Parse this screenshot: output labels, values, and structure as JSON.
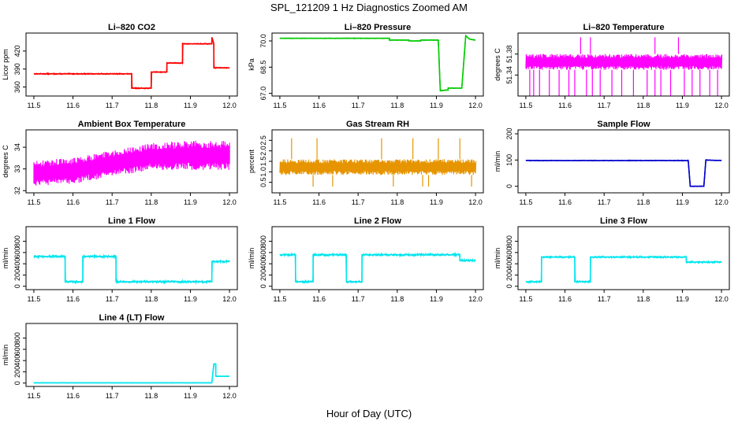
{
  "figure": {
    "title": "SPL_121209  1 Hz Diagnostics Zoomed AM",
    "xlabel": "Hour of Day (UTC)"
  },
  "chart_data": [
    {
      "type": "line",
      "title": "Li–820 CO2",
      "ylabel": "Licor ppm",
      "color": "#ff0000",
      "xlim": [
        11.48,
        12.02
      ],
      "ylim": [
        345,
        450
      ],
      "xticks": [
        11.5,
        11.6,
        11.7,
        11.8,
        11.9,
        12.0
      ],
      "yticks": [
        360,
        390,
        420
      ],
      "series": [
        {
          "x": [
            11.5,
            11.75,
            11.75,
            11.8,
            11.8,
            11.84,
            11.84,
            11.88,
            11.88,
            11.955,
            11.955,
            11.96,
            11.96,
            12.0
          ],
          "y": [
            382,
            382,
            358,
            358,
            385,
            385,
            400,
            400,
            432,
            432,
            443,
            432,
            392,
            392
          ],
          "noise": 0.8
        }
      ]
    },
    {
      "type": "line",
      "title": "Li–820 Pressure",
      "ylabel": "kPa",
      "color": "#00cc00",
      "xlim": [
        11.48,
        12.02
      ],
      "ylim": [
        66.85,
        70.45
      ],
      "xticks": [
        11.5,
        11.6,
        11.7,
        11.8,
        11.9,
        12.0
      ],
      "yticks": [
        67.0,
        68.5,
        70.0
      ],
      "series": [
        {
          "x": [
            11.5,
            11.78,
            11.78,
            11.83,
            11.83,
            11.86,
            11.86,
            11.905,
            11.91,
            11.93,
            11.93,
            11.965,
            11.975,
            11.985,
            12.0
          ],
          "y": [
            70.15,
            70.15,
            70.05,
            70.05,
            70.0,
            70.0,
            70.05,
            70.05,
            67.15,
            67.2,
            67.3,
            67.3,
            70.3,
            70.1,
            70.05
          ],
          "noise": 0.015
        }
      ]
    },
    {
      "type": "band",
      "title": "Li–820 Temperature",
      "ylabel": "degrees C",
      "color": "#ff00ff",
      "xlim": [
        11.48,
        12.02
      ],
      "ylim": [
        51.3,
        51.42
      ],
      "xticks": [
        11.5,
        11.6,
        11.7,
        11.8,
        11.9,
        12.0
      ],
      "yticks": [
        51.34,
        51.38
      ],
      "band": {
        "x": [
          11.5,
          12.0
        ],
        "low": [
          51.35,
          51.35
        ],
        "high": [
          51.38,
          51.38
        ]
      },
      "spikes_down": [
        11.51,
        11.52,
        11.535,
        11.56,
        11.585,
        11.61,
        11.625,
        11.655,
        11.67,
        11.69,
        11.72,
        11.745,
        11.775,
        11.81,
        11.83,
        11.845,
        11.87,
        11.905,
        11.925,
        11.945,
        11.97,
        11.99
      ],
      "spikes_up": [
        11.64,
        11.665,
        11.83,
        11.89
      ],
      "spike_low": 51.3,
      "spike_high": 51.412
    },
    {
      "type": "band",
      "title": "Ambient Box Temperature",
      "ylabel": "degrees C",
      "color": "#ff00ff",
      "xlim": [
        11.48,
        12.02
      ],
      "ylim": [
        31.9,
        34.8
      ],
      "xticks": [
        11.5,
        11.6,
        11.7,
        11.8,
        11.9,
        12.0
      ],
      "yticks": [
        32.0,
        33.0,
        34.0
      ],
      "band": {
        "x": [
          11.5,
          11.6,
          11.7,
          11.8,
          11.9,
          12.0
        ],
        "low": [
          32.2,
          32.3,
          32.65,
          32.95,
          32.95,
          32.95
        ],
        "high": [
          33.4,
          33.5,
          33.85,
          34.2,
          34.3,
          34.3
        ]
      }
    },
    {
      "type": "band",
      "title": "Gas Stream RH",
      "ylabel": "percent",
      "color": "#e69500",
      "xlim": [
        11.48,
        12.02
      ],
      "ylim": [
        0.0,
        3.0
      ],
      "xticks": [
        11.5,
        11.6,
        11.7,
        11.8,
        11.9,
        12.0
      ],
      "yticks": [
        0.5,
        1.0,
        1.5,
        2.0,
        2.5
      ],
      "band": {
        "x": [
          11.5,
          12.0
        ],
        "low": [
          0.85,
          0.85
        ],
        "high": [
          1.6,
          1.6
        ]
      },
      "spikes_up": [
        11.53,
        11.595,
        11.76,
        11.84,
        11.905,
        11.96
      ],
      "spikes_down": [
        11.585,
        11.635,
        11.79,
        11.865,
        11.88,
        11.99
      ],
      "spike_low": 0.3,
      "spike_high": 2.6
    },
    {
      "type": "line",
      "title": "Sample Flow",
      "ylabel": "ml/min",
      "color": "#0000cc",
      "xlim": [
        11.48,
        12.02
      ],
      "ylim": [
        -25,
        215
      ],
      "xticks": [
        11.5,
        11.6,
        11.7,
        11.8,
        11.9,
        12.0
      ],
      "yticks": [
        0,
        100,
        200
      ],
      "series": [
        {
          "x": [
            11.5,
            11.915,
            11.92,
            11.955,
            11.96,
            12.0
          ],
          "y": [
            98,
            98,
            0,
            0,
            100,
            98
          ],
          "noise": 1.2
        }
      ]
    },
    {
      "type": "line",
      "title": "Line 1 Flow",
      "ylabel": "ml/min",
      "color": "#00e5ee",
      "xlim": [
        11.48,
        12.02
      ],
      "ylim": [
        -60,
        1060
      ],
      "xticks": [
        11.5,
        11.6,
        11.7,
        11.8,
        11.9,
        12.0
      ],
      "yticks": [
        0,
        200,
        400,
        600,
        800
      ],
      "series": [
        {
          "x": [
            11.5,
            11.58,
            11.58,
            11.625,
            11.625,
            11.71,
            11.71,
            11.955,
            11.955,
            12.0
          ],
          "y": [
            530,
            530,
            80,
            80,
            530,
            530,
            80,
            80,
            440,
            440
          ],
          "noise": 18
        }
      ]
    },
    {
      "type": "line",
      "title": "Line 2 Flow",
      "ylabel": "ml/min",
      "color": "#00e5ee",
      "xlim": [
        11.48,
        12.02
      ],
      "ylim": [
        -60,
        1060
      ],
      "xticks": [
        11.5,
        11.6,
        11.7,
        11.8,
        11.9,
        12.0
      ],
      "yticks": [
        0,
        200,
        400,
        600,
        800
      ],
      "series": [
        {
          "x": [
            11.5,
            11.54,
            11.54,
            11.585,
            11.585,
            11.67,
            11.67,
            11.71,
            11.71,
            11.96,
            11.96,
            12.0
          ],
          "y": [
            560,
            560,
            80,
            80,
            560,
            560,
            80,
            80,
            560,
            560,
            460,
            460
          ],
          "noise": 18
        }
      ]
    },
    {
      "type": "line",
      "title": "Line 3 Flow",
      "ylabel": "ml/min",
      "color": "#00e5ee",
      "xlim": [
        11.48,
        12.02
      ],
      "ylim": [
        -60,
        1060
      ],
      "xticks": [
        11.5,
        11.6,
        11.7,
        11.8,
        11.9,
        12.0
      ],
      "yticks": [
        0,
        200,
        400,
        600,
        800
      ],
      "series": [
        {
          "x": [
            11.5,
            11.54,
            11.54,
            11.625,
            11.625,
            11.665,
            11.665,
            11.91,
            11.91,
            12.0
          ],
          "y": [
            80,
            80,
            520,
            520,
            80,
            80,
            520,
            520,
            430,
            430
          ],
          "noise": 14
        }
      ]
    },
    {
      "type": "line",
      "title": "Line 4 (LT) Flow",
      "ylabel": "ml/min",
      "color": "#00e5ee",
      "xlim": [
        11.48,
        12.02
      ],
      "ylim": [
        -60,
        1060
      ],
      "xticks": [
        11.5,
        11.6,
        11.7,
        11.8,
        11.9,
        12.0
      ],
      "yticks": [
        0,
        200,
        400,
        600,
        800
      ],
      "series": [
        {
          "x": [
            11.5,
            11.955,
            11.96,
            11.965,
            11.965,
            12.0
          ],
          "y": [
            5,
            5,
            340,
            340,
            120,
            120
          ],
          "noise": 3
        }
      ]
    }
  ]
}
